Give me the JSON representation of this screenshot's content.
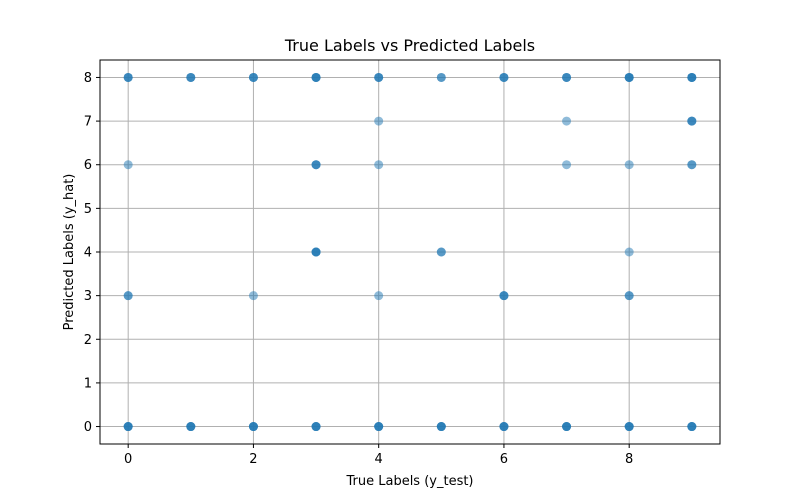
{
  "chart_data": {
    "type": "scatter",
    "title": "True Labels vs Predicted Labels",
    "xlabel": "True Labels (y_test)",
    "ylabel": "Predicted Labels (y_hat)",
    "xlim": [
      -0.45,
      9.45
    ],
    "ylim": [
      -0.4,
      8.4
    ],
    "xticks": [
      0,
      2,
      4,
      6,
      8
    ],
    "yticks": [
      0,
      1,
      2,
      3,
      4,
      5,
      6,
      7,
      8
    ],
    "grid": true,
    "marker_color": "#1f77b4",
    "marker_alpha": 0.5,
    "points": [
      {
        "x": 0,
        "y": 8,
        "n": 3
      },
      {
        "x": 0,
        "y": 6,
        "n": 1
      },
      {
        "x": 0,
        "y": 3,
        "n": 2
      },
      {
        "x": 0,
        "y": 0,
        "n": 4
      },
      {
        "x": 1,
        "y": 8,
        "n": 3
      },
      {
        "x": 1,
        "y": 0,
        "n": 4
      },
      {
        "x": 2,
        "y": 8,
        "n": 3
      },
      {
        "x": 2,
        "y": 3,
        "n": 1
      },
      {
        "x": 2,
        "y": 0,
        "n": 4
      },
      {
        "x": 3,
        "y": 8,
        "n": 4
      },
      {
        "x": 3,
        "y": 6,
        "n": 3
      },
      {
        "x": 3,
        "y": 4,
        "n": 4
      },
      {
        "x": 3,
        "y": 0,
        "n": 4
      },
      {
        "x": 4,
        "y": 8,
        "n": 3
      },
      {
        "x": 4,
        "y": 7,
        "n": 1
      },
      {
        "x": 4,
        "y": 6,
        "n": 1
      },
      {
        "x": 4,
        "y": 3,
        "n": 1
      },
      {
        "x": 4,
        "y": 0,
        "n": 4
      },
      {
        "x": 5,
        "y": 8,
        "n": 2
      },
      {
        "x": 5,
        "y": 4,
        "n": 2
      },
      {
        "x": 5,
        "y": 0,
        "n": 4
      },
      {
        "x": 6,
        "y": 8,
        "n": 3
      },
      {
        "x": 6,
        "y": 3,
        "n": 3
      },
      {
        "x": 6,
        "y": 0,
        "n": 4
      },
      {
        "x": 7,
        "y": 8,
        "n": 3
      },
      {
        "x": 7,
        "y": 7,
        "n": 1
      },
      {
        "x": 7,
        "y": 6,
        "n": 1
      },
      {
        "x": 7,
        "y": 0,
        "n": 4
      },
      {
        "x": 8,
        "y": 8,
        "n": 4
      },
      {
        "x": 8,
        "y": 6,
        "n": 1
      },
      {
        "x": 8,
        "y": 4,
        "n": 1
      },
      {
        "x": 8,
        "y": 3,
        "n": 2
      },
      {
        "x": 8,
        "y": 0,
        "n": 4
      },
      {
        "x": 9,
        "y": 8,
        "n": 4
      },
      {
        "x": 9,
        "y": 7,
        "n": 3
      },
      {
        "x": 9,
        "y": 6,
        "n": 2
      },
      {
        "x": 9,
        "y": 0,
        "n": 4
      }
    ]
  }
}
